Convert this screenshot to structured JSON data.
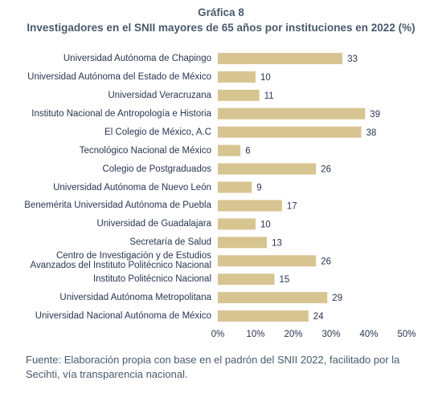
{
  "chart_data": {
    "type": "bar",
    "orientation": "horizontal",
    "title": "Gráfica 8",
    "subtitle": "Investigadores en el SNII mayores de 65 años por instituciones en 2022 (%)",
    "categories": [
      "Universidad Autónoma de Chapingo",
      "Universidad Autónoma del Estado de México",
      "Universidad Veracruzana",
      "Instituto Nacional de Antropología e Historia",
      "El Colegio de México, A.C",
      "Tecnológico Nacional de México",
      "Colegio de Postgraduados",
      "Universidad Autónoma de Nuevo León",
      "Benemérita Universidad Autónoma de Puebla",
      "Universidad de Guadalajara",
      "Secretaría de Salud",
      "Centro de Investigación y de Estudios\nAvanzados del Instituto Politécnico Nacional",
      "Instituto Politécnico Nacional",
      "Universidad Autónoma Metropolitana",
      "Universidad Nacional Autónoma de México"
    ],
    "values": [
      33,
      10,
      11,
      39,
      38,
      6,
      26,
      9,
      17,
      10,
      13,
      26,
      15,
      29,
      24
    ],
    "color": "#d7c591",
    "xlim": [
      0,
      50
    ],
    "xticks": [
      {
        "value": 0,
        "label": "0%"
      },
      {
        "value": 10,
        "label": "10%"
      },
      {
        "value": 20,
        "label": "20%"
      },
      {
        "value": 30,
        "label": "30%"
      },
      {
        "value": 40,
        "label": "40%"
      },
      {
        "value": 50,
        "label": "50%"
      }
    ],
    "grid": false,
    "source": "Fuente: Elaboración propia con base en el padrón del SNII 2022, facilitado por la Secihti, vía transparencia nacional."
  }
}
